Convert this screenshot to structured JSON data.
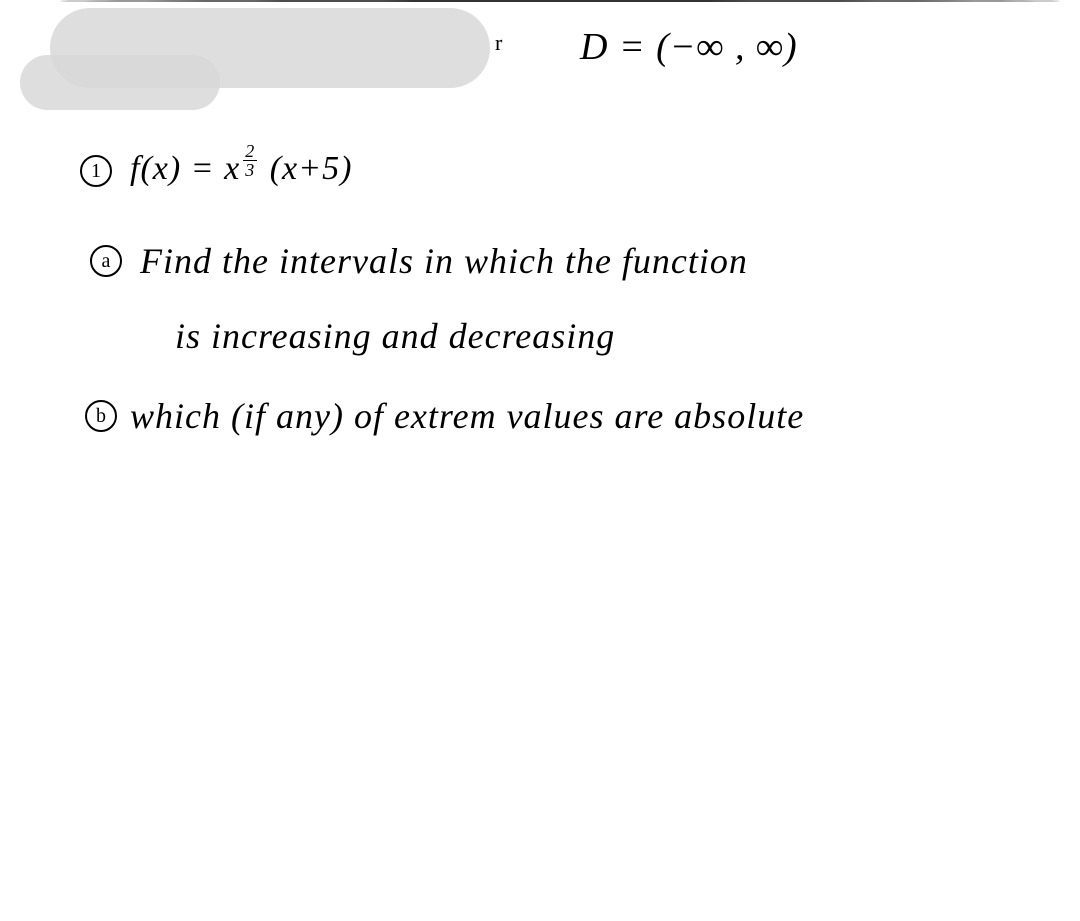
{
  "domain_line": "D = (−∞ , ∞)",
  "tick_mark": "r",
  "problem_number": "1",
  "function_def": {
    "lhs": "f(x) = ",
    "base": "x",
    "exp_num": "2",
    "exp_den": "3",
    "factor": " (x+5)"
  },
  "part_a": {
    "label": "a",
    "line1": "Find the intervals in which the function",
    "line2": "is increasing and decreasing"
  },
  "part_b": {
    "label": "b",
    "text": "which (if any) of extrem values are absolute"
  },
  "colors": {
    "ink": "#000000",
    "paper": "#ffffff",
    "smudge": "#d8d8d8"
  }
}
